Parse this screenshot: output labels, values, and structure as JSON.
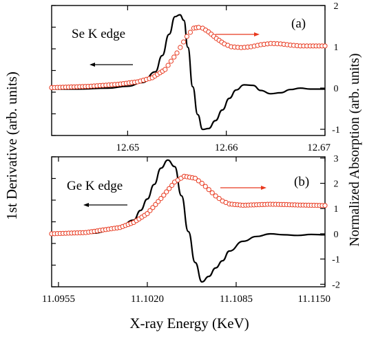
{
  "figure": {
    "left_label": "1st Derivative (arb. units)",
    "right_label": "Normalized Absorption (arb. units)",
    "x_label": "X-ray Energy (KeV)"
  },
  "colors": {
    "derivative": "#000000",
    "absorption": "#e8381e",
    "axes": "#000000"
  },
  "chart_data": [
    {
      "type": "line",
      "panel": "(a)",
      "annotation": "Se K edge",
      "x_ticks": [
        "12.65",
        "12.66",
        "12.67"
      ],
      "x_tick_values": [
        12.65,
        12.66,
        12.67
      ],
      "xlim": [
        12.6423,
        12.67
      ],
      "y_right_ticks": [
        "-1",
        "0",
        "1",
        "2"
      ],
      "y_right_values": [
        -1,
        0,
        1,
        2
      ],
      "ylim_right": [
        -1.15,
        2.0
      ],
      "ylim_left": [
        -1.0,
        1.8
      ],
      "series": [
        {
          "axis": "left",
          "style": "line",
          "x": [
            12.6423,
            12.645,
            12.648,
            12.65,
            12.6515,
            12.6528,
            12.6535,
            12.6542,
            12.6548,
            12.6553,
            12.6557,
            12.6561,
            12.6566,
            12.6571,
            12.6576,
            12.6582,
            12.6589,
            12.6596,
            12.6603,
            12.661,
            12.6618,
            12.6627,
            12.6635,
            12.6645,
            12.6655,
            12.6665,
            12.6675,
            12.6685,
            12.67
          ],
          "y": [
            0.0,
            0.0,
            0.02,
            0.06,
            0.14,
            0.37,
            0.72,
            1.18,
            1.56,
            1.6,
            1.48,
            0.9,
            0.05,
            -0.55,
            -0.87,
            -0.85,
            -0.68,
            -0.45,
            -0.2,
            -0.02,
            0.09,
            0.08,
            -0.03,
            -0.1,
            -0.08,
            -0.01,
            0.02,
            0.0,
            0.0
          ]
        },
        {
          "axis": "right",
          "style": "markers",
          "x": [
            12.6423,
            12.646,
            12.649,
            12.651,
            12.6525,
            12.6538,
            12.655,
            12.656,
            12.6567,
            12.6572,
            12.6576,
            12.6582,
            12.659,
            12.6598,
            12.6605,
            12.6615,
            12.6625,
            12.6635,
            12.6645,
            12.6655,
            12.6665,
            12.6675,
            12.6685,
            12.67
          ],
          "y": [
            0.01,
            0.04,
            0.09,
            0.15,
            0.25,
            0.45,
            0.85,
            1.25,
            1.45,
            1.47,
            1.45,
            1.36,
            1.2,
            1.07,
            1.0,
            0.98,
            1.0,
            1.05,
            1.08,
            1.07,
            1.04,
            1.02,
            1.02,
            1.02
          ]
        }
      ]
    },
    {
      "type": "line",
      "panel": "(b)",
      "annotation": "Ge K edge",
      "x_ticks": [
        "11.0955",
        "11.1020",
        "11.1085",
        "11.1150"
      ],
      "x_tick_values": [
        11.0955,
        11.102,
        11.1085,
        11.115
      ],
      "xlim": [
        11.095,
        11.115
      ],
      "y_right_ticks": [
        "-2",
        "-1",
        "0",
        "1",
        "2",
        "3"
      ],
      "y_right_values": [
        -2,
        -1,
        0,
        1,
        2,
        3
      ],
      "ylim_right": [
        -2.1,
        3.05
      ],
      "ylim_left": [
        -1.6,
        2.4
      ],
      "series": [
        {
          "axis": "left",
          "style": "line",
          "x": [
            11.095,
            11.098,
            11.1,
            11.101,
            11.1015,
            11.102,
            11.1025,
            11.103,
            11.1035,
            11.104,
            11.1045,
            11.105,
            11.1055,
            11.106,
            11.1065,
            11.107,
            11.1075,
            11.108,
            11.109,
            11.11,
            11.111,
            11.112,
            11.113,
            11.114,
            11.115
          ],
          "y": [
            0.0,
            0.05,
            0.25,
            0.45,
            0.75,
            1.1,
            1.55,
            2.05,
            2.3,
            2.1,
            1.2,
            0.1,
            -0.85,
            -1.45,
            -1.28,
            -1.02,
            -0.8,
            -0.5,
            -0.2,
            -0.05,
            0.03,
            0.0,
            -0.02,
            0.01,
            0.0
          ]
        },
        {
          "axis": "right",
          "style": "markers",
          "x": [
            11.095,
            11.0975,
            11.1,
            11.101,
            11.102,
            11.103,
            11.104,
            11.1047,
            11.1055,
            11.106,
            11.1065,
            11.107,
            11.1075,
            11.108,
            11.109,
            11.11,
            11.111,
            11.112,
            11.113,
            11.114,
            11.115
          ],
          "y": [
            0.0,
            0.05,
            0.25,
            0.45,
            0.8,
            1.4,
            2.05,
            2.28,
            2.2,
            2.0,
            1.75,
            1.5,
            1.3,
            1.18,
            1.13,
            1.15,
            1.17,
            1.16,
            1.14,
            1.13,
            1.12
          ]
        }
      ]
    }
  ]
}
